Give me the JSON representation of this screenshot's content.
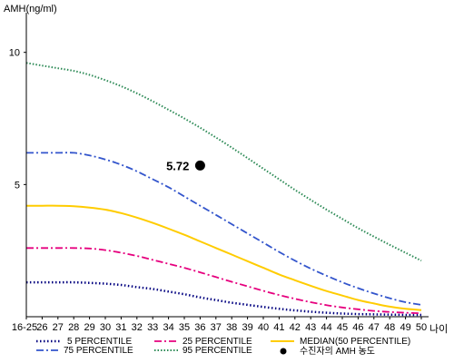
{
  "chart_data": {
    "type": "line",
    "ylabel": "AMH(ng/ml)",
    "xlabel": "나이",
    "ylim": [
      0,
      11.5
    ],
    "yticks": [
      5,
      10
    ],
    "grid": false,
    "legend_position": "bottom",
    "categories": [
      "16-25",
      "26",
      "27",
      "28",
      "29",
      "30",
      "31",
      "32",
      "33",
      "34",
      "35",
      "36",
      "37",
      "38",
      "39",
      "40",
      "41",
      "42",
      "43",
      "44",
      "45",
      "46",
      "47",
      "48",
      "49",
      "50"
    ],
    "series": [
      {
        "name": "5 PERCENTILE",
        "color": "#000080",
        "dash": "1.5,2.5",
        "width": 2.5,
        "values": [
          1.3,
          1.3,
          1.3,
          1.3,
          1.28,
          1.25,
          1.2,
          1.12,
          1.05,
          0.95,
          0.85,
          0.73,
          0.63,
          0.53,
          0.45,
          0.37,
          0.3,
          0.24,
          0.19,
          0.15,
          0.12,
          0.1,
          0.09,
          0.08,
          0.07,
          0.07
        ]
      },
      {
        "name": "25 PERCENTILE",
        "color": "#e6007e",
        "dash": "8,3,2,3",
        "width": 1.8,
        "values": [
          2.6,
          2.6,
          2.6,
          2.6,
          2.58,
          2.52,
          2.42,
          2.3,
          2.15,
          2.0,
          1.85,
          1.68,
          1.5,
          1.32,
          1.15,
          0.98,
          0.82,
          0.68,
          0.55,
          0.44,
          0.35,
          0.28,
          0.22,
          0.18,
          0.15,
          0.13
        ]
      },
      {
        "name": "MEDIAN(50 PERCENTILE)",
        "color": "#ffcc00",
        "dash": "",
        "width": 2,
        "values": [
          4.2,
          4.2,
          4.2,
          4.18,
          4.13,
          4.05,
          3.92,
          3.75,
          3.55,
          3.33,
          3.1,
          2.85,
          2.6,
          2.35,
          2.1,
          1.85,
          1.6,
          1.38,
          1.17,
          0.97,
          0.8,
          0.63,
          0.5,
          0.38,
          0.3,
          0.25
        ]
      },
      {
        "name": "75 PERCENTILE",
        "color": "#3355cc",
        "dash": "8,3,2,3",
        "width": 1.8,
        "values": [
          6.2,
          6.2,
          6.2,
          6.2,
          6.1,
          5.95,
          5.75,
          5.5,
          5.2,
          4.9,
          4.55,
          4.2,
          3.85,
          3.5,
          3.15,
          2.8,
          2.45,
          2.12,
          1.82,
          1.55,
          1.3,
          1.08,
          0.88,
          0.7,
          0.55,
          0.45
        ]
      },
      {
        "name": "95 PERCENTILE",
        "color": "#2e8b57",
        "dash": "1.5,2",
        "width": 2,
        "values": [
          9.6,
          9.5,
          9.4,
          9.3,
          9.15,
          8.95,
          8.72,
          8.45,
          8.15,
          7.83,
          7.5,
          7.15,
          6.78,
          6.4,
          6.0,
          5.6,
          5.2,
          4.8,
          4.42,
          4.05,
          3.7,
          3.35,
          3.03,
          2.72,
          2.42,
          2.12
        ]
      }
    ],
    "annotations": [
      {
        "x": "36",
        "y": 5.72,
        "label": "5.72",
        "color": "#000000"
      }
    ],
    "legend_extra": {
      "label": "수진자의 AMH 농도",
      "color": "#000000"
    }
  }
}
